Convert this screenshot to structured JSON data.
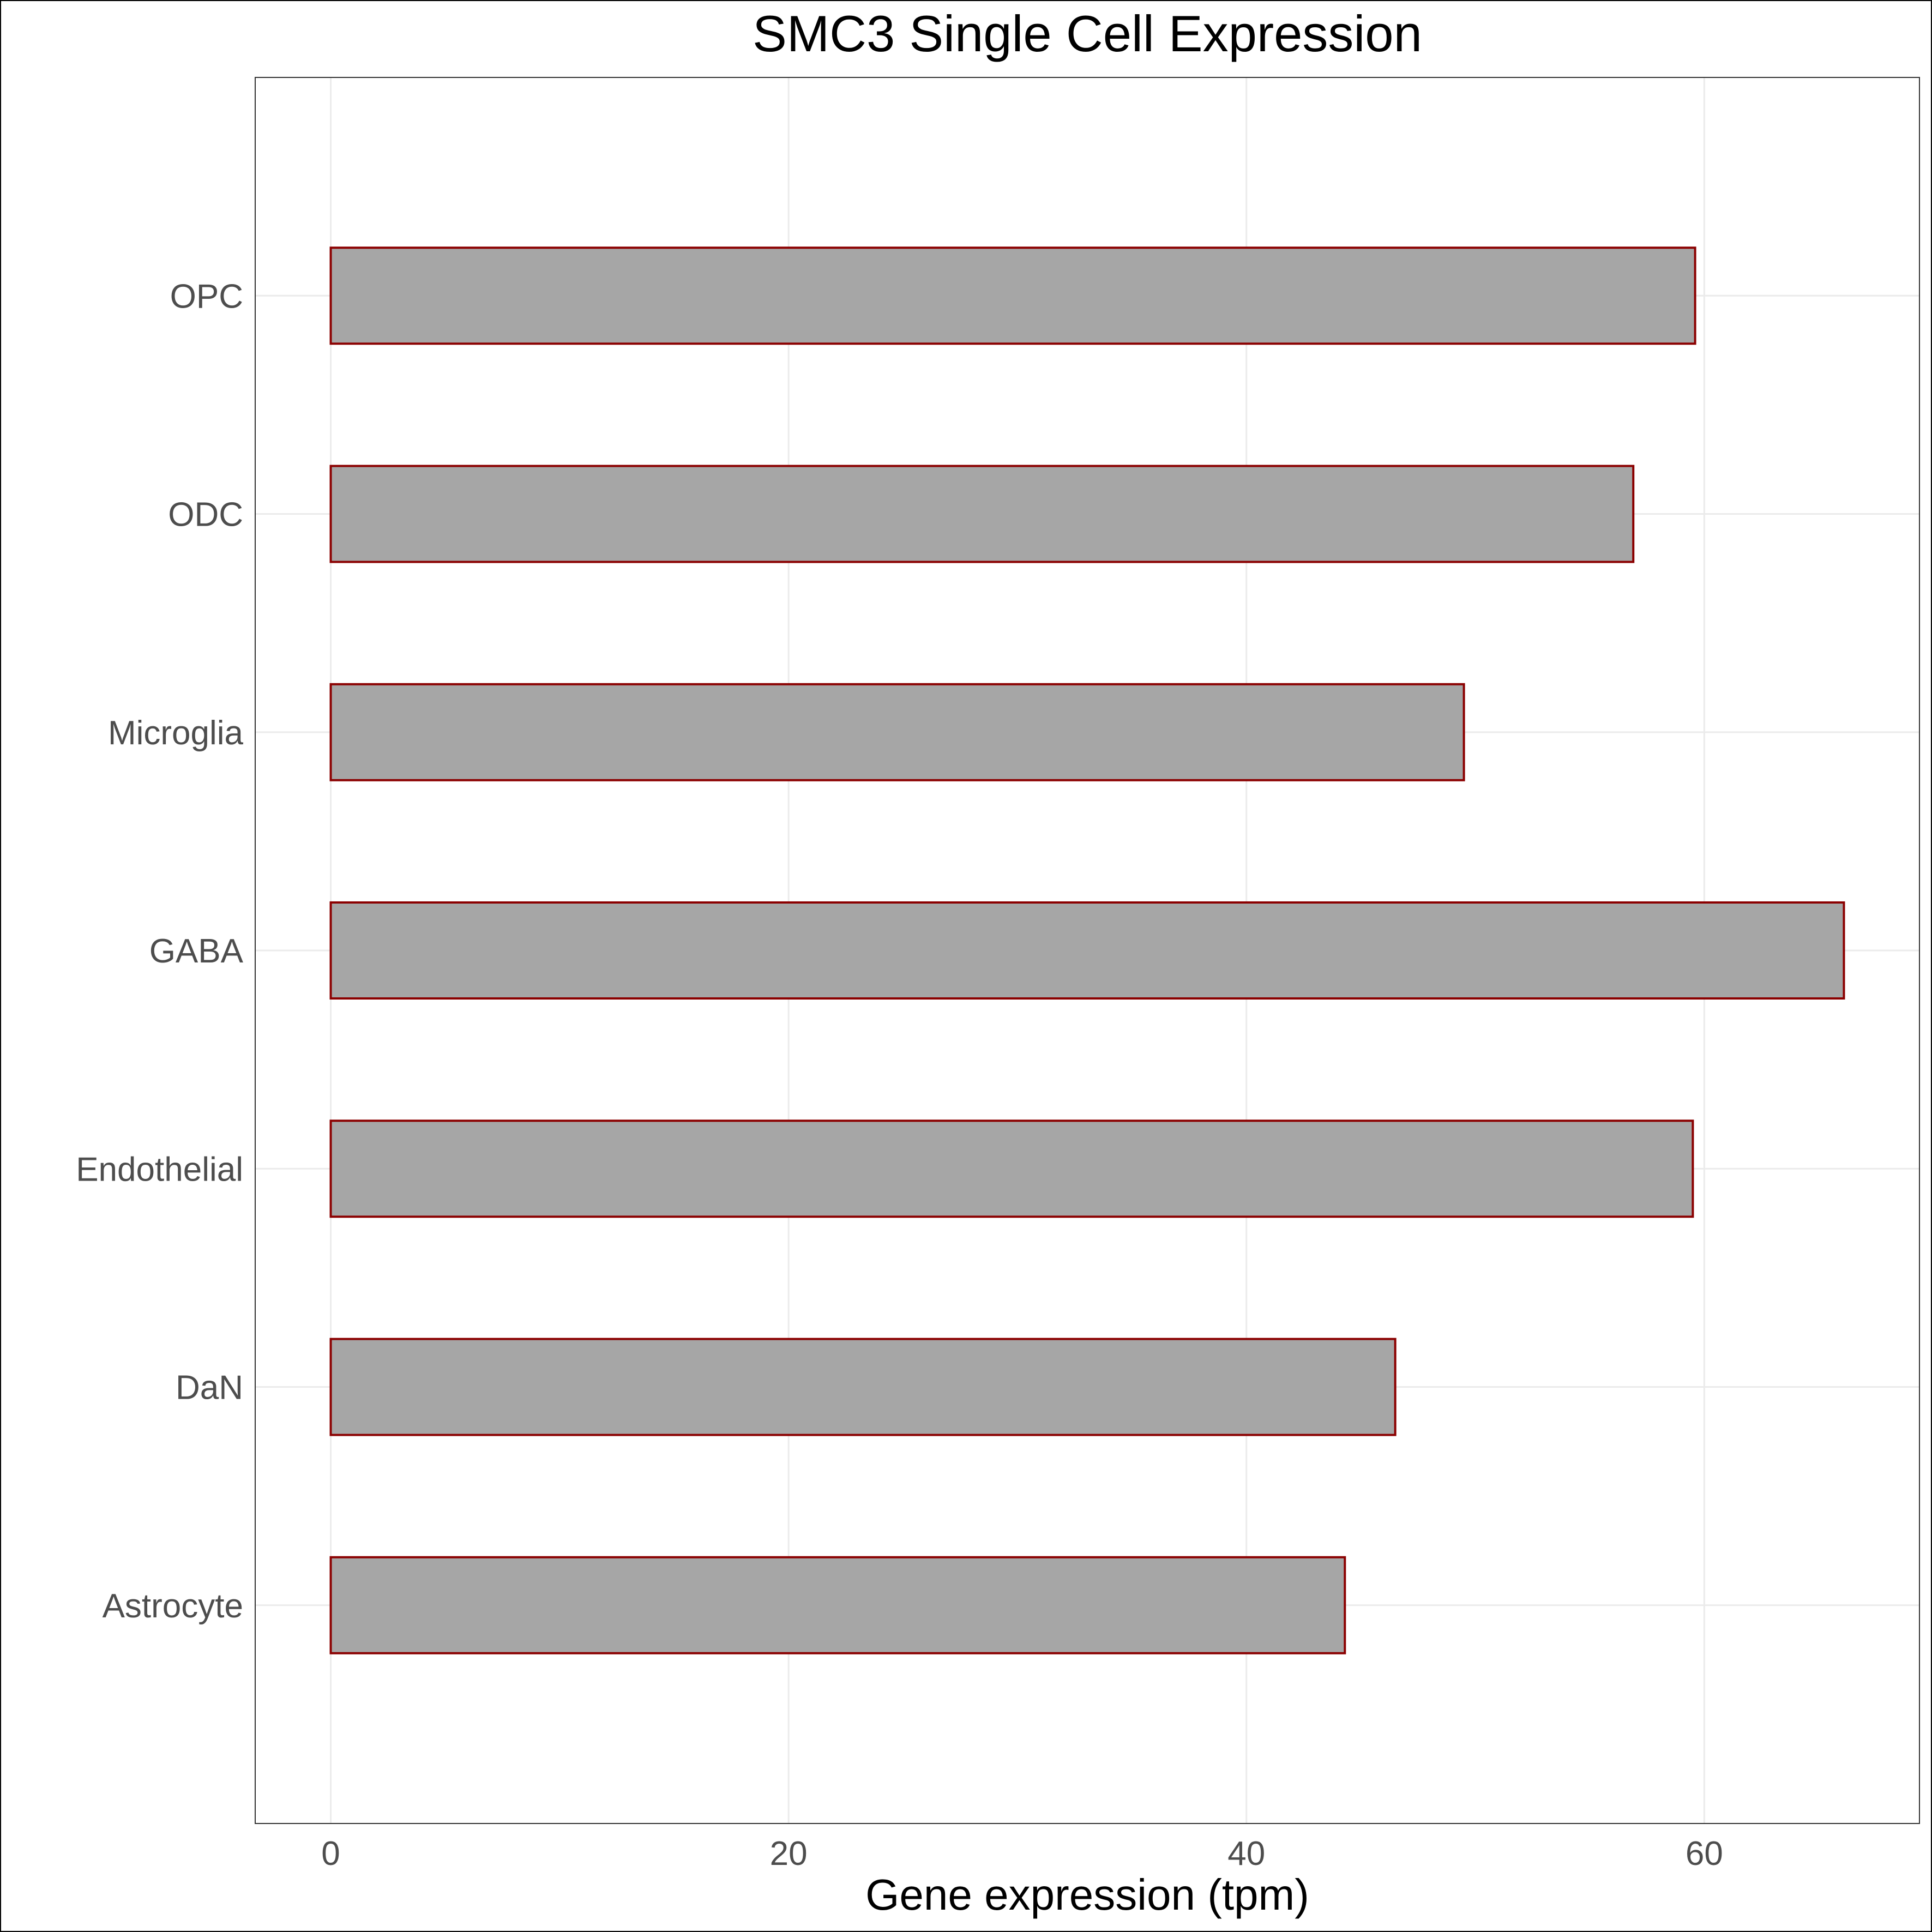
{
  "chart_data": {
    "type": "bar",
    "orientation": "horizontal",
    "title": "SMC3 Single Cell Expression",
    "xlabel": "Gene expression (tpm)",
    "ylabel": "",
    "categories": [
      "OPC",
      "ODC",
      "Microglia",
      "GABA",
      "Endothelial",
      "DaN",
      "Astrocyte"
    ],
    "values": [
      59.6,
      56.9,
      49.5,
      66.1,
      59.5,
      46.5,
      44.3
    ],
    "xlim": [
      -3.3,
      69.4
    ],
    "xticks": [
      0,
      20,
      40,
      60
    ],
    "grid": true,
    "legend": "none",
    "colors": {
      "bar_fill": "#a6a6a6",
      "bar_stroke": "#8b0000",
      "grid": "#ebebeb",
      "panel_border": "#333333",
      "tick_text": "#4d4d4d"
    }
  }
}
